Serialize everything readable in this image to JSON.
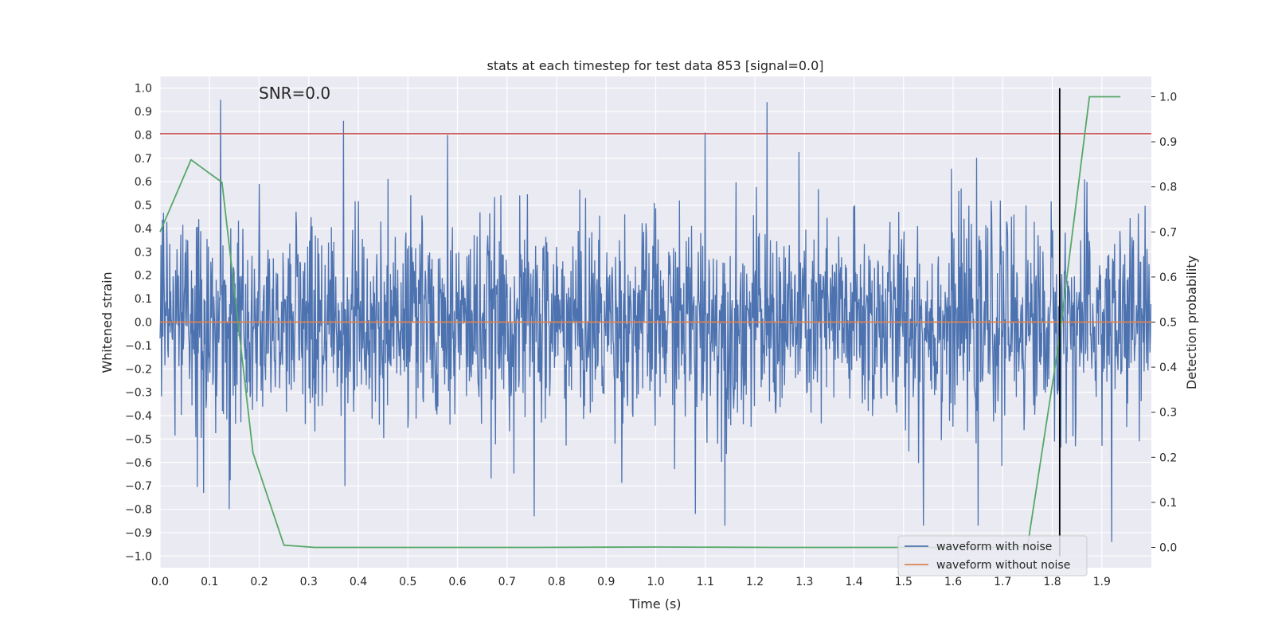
{
  "chart_data": {
    "type": "line",
    "title": "stats at each timestep for test data 853 [signal=0.0]",
    "xlabel": "Time (s)",
    "ylabel": "Whitened strain",
    "y2label": "Detection probability",
    "annotation": "SNR=0.0",
    "xlim": [
      0.0,
      2.0
    ],
    "ylim": [
      -1.05,
      1.05
    ],
    "y2lim": [
      -0.045,
      1.045
    ],
    "x_ticks": [
      "0.0",
      "0.1",
      "0.2",
      "0.3",
      "0.4",
      "0.5",
      "0.6",
      "0.7",
      "0.8",
      "0.9",
      "1.0",
      "1.1",
      "1.2",
      "1.3",
      "1.4",
      "1.5",
      "1.6",
      "1.7",
      "1.8",
      "1.9"
    ],
    "y_ticks": [
      "1.0",
      "0.9",
      "0.8",
      "0.7",
      "0.6",
      "0.5",
      "0.4",
      "0.3",
      "0.2",
      "0.1",
      "0.0",
      "−0.1",
      "−0.2",
      "−0.3",
      "−0.4",
      "−0.5",
      "−0.6",
      "−0.7",
      "−0.8",
      "−0.9",
      "−1.0"
    ],
    "y2_ticks": [
      "1.0",
      "0.9",
      "0.8",
      "0.7",
      "0.6",
      "0.5",
      "0.4",
      "0.3",
      "0.2",
      "0.1",
      "0.0"
    ],
    "grid": true,
    "legend_position": "lower-right",
    "legend": [
      "waveform with noise",
      "waveform without noise"
    ],
    "threshold_y": 0.805,
    "trigger_time": 1.815,
    "trigger_range": [
      -1.0,
      1.0
    ],
    "series": [
      {
        "name": "waveform with noise",
        "color": "#4c72b0",
        "axis": "left",
        "description_samples": 2048,
        "noise_amplitude": 0.22,
        "peaks": [
          {
            "x": 0.122,
            "y": 0.95
          },
          {
            "x": 0.37,
            "y": 0.86
          },
          {
            "x": 0.58,
            "y": 0.8
          },
          {
            "x": 1.1,
            "y": 0.81
          },
          {
            "x": 1.225,
            "y": 0.94
          },
          {
            "x": 1.08,
            "y": -0.82
          },
          {
            "x": 1.14,
            "y": -0.87
          },
          {
            "x": 1.54,
            "y": -0.87
          },
          {
            "x": 1.65,
            "y": -0.87
          },
          {
            "x": 1.92,
            "y": -0.94
          },
          {
            "x": 0.755,
            "y": -0.83
          },
          {
            "x": 0.088,
            "y": -0.73
          },
          {
            "x": 0.14,
            "y": -0.8
          }
        ]
      },
      {
        "name": "waveform without noise",
        "color": "#dd8452",
        "axis": "left",
        "x": [
          0.0,
          2.0
        ],
        "y": [
          0.0,
          0.0
        ]
      },
      {
        "name": "detection probability",
        "color": "#55a868",
        "axis": "right",
        "x": [
          0.0,
          0.0625,
          0.125,
          0.1875,
          0.25,
          0.3125,
          0.375,
          0.5,
          0.75,
          1.0,
          1.25,
          1.5,
          1.625,
          1.6875,
          1.75,
          1.8125,
          1.875,
          1.9375
        ],
        "y": [
          0.7,
          0.86,
          0.81,
          0.21,
          0.005,
          0.0,
          0.0,
          0.0,
          0.0,
          0.001,
          0.0,
          0.0,
          0.0,
          0.0,
          0.002,
          0.45,
          1.0,
          1.0
        ]
      }
    ]
  }
}
